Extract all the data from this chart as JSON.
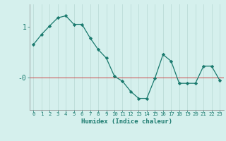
{
  "x": [
    0,
    1,
    2,
    3,
    4,
    5,
    6,
    7,
    8,
    9,
    10,
    11,
    12,
    13,
    14,
    15,
    16,
    17,
    18,
    19,
    20,
    21,
    22,
    23
  ],
  "y": [
    0.65,
    0.85,
    1.02,
    1.18,
    1.22,
    1.05,
    1.05,
    0.78,
    0.55,
    0.38,
    0.02,
    -0.08,
    -0.28,
    -0.42,
    -0.42,
    -0.02,
    0.45,
    0.32,
    -0.12,
    -0.12,
    -0.12,
    0.22,
    0.22,
    -0.06
  ],
  "line_color": "#1a7a6e",
  "marker": "D",
  "marker_size": 2.2,
  "bg_color": "#d5f0ed",
  "grid_color": "#b8d8d4",
  "ytick_labels": [
    "1",
    "-0"
  ],
  "ytick_values": [
    1.0,
    0.0
  ],
  "xtick_labels": [
    "0",
    "1",
    "2",
    "3",
    "4",
    "5",
    "6",
    "7",
    "8",
    "9",
    "10",
    "11",
    "12",
    "13",
    "14",
    "15",
    "16",
    "17",
    "18",
    "19",
    "20",
    "21",
    "22",
    "23"
  ],
  "xlabel": "Humidex (Indice chaleur)",
  "hline_y": 0,
  "hline_color": "#cc4444",
  "ylim": [
    -0.65,
    1.45
  ],
  "xlim": [
    -0.5,
    23.5
  ]
}
